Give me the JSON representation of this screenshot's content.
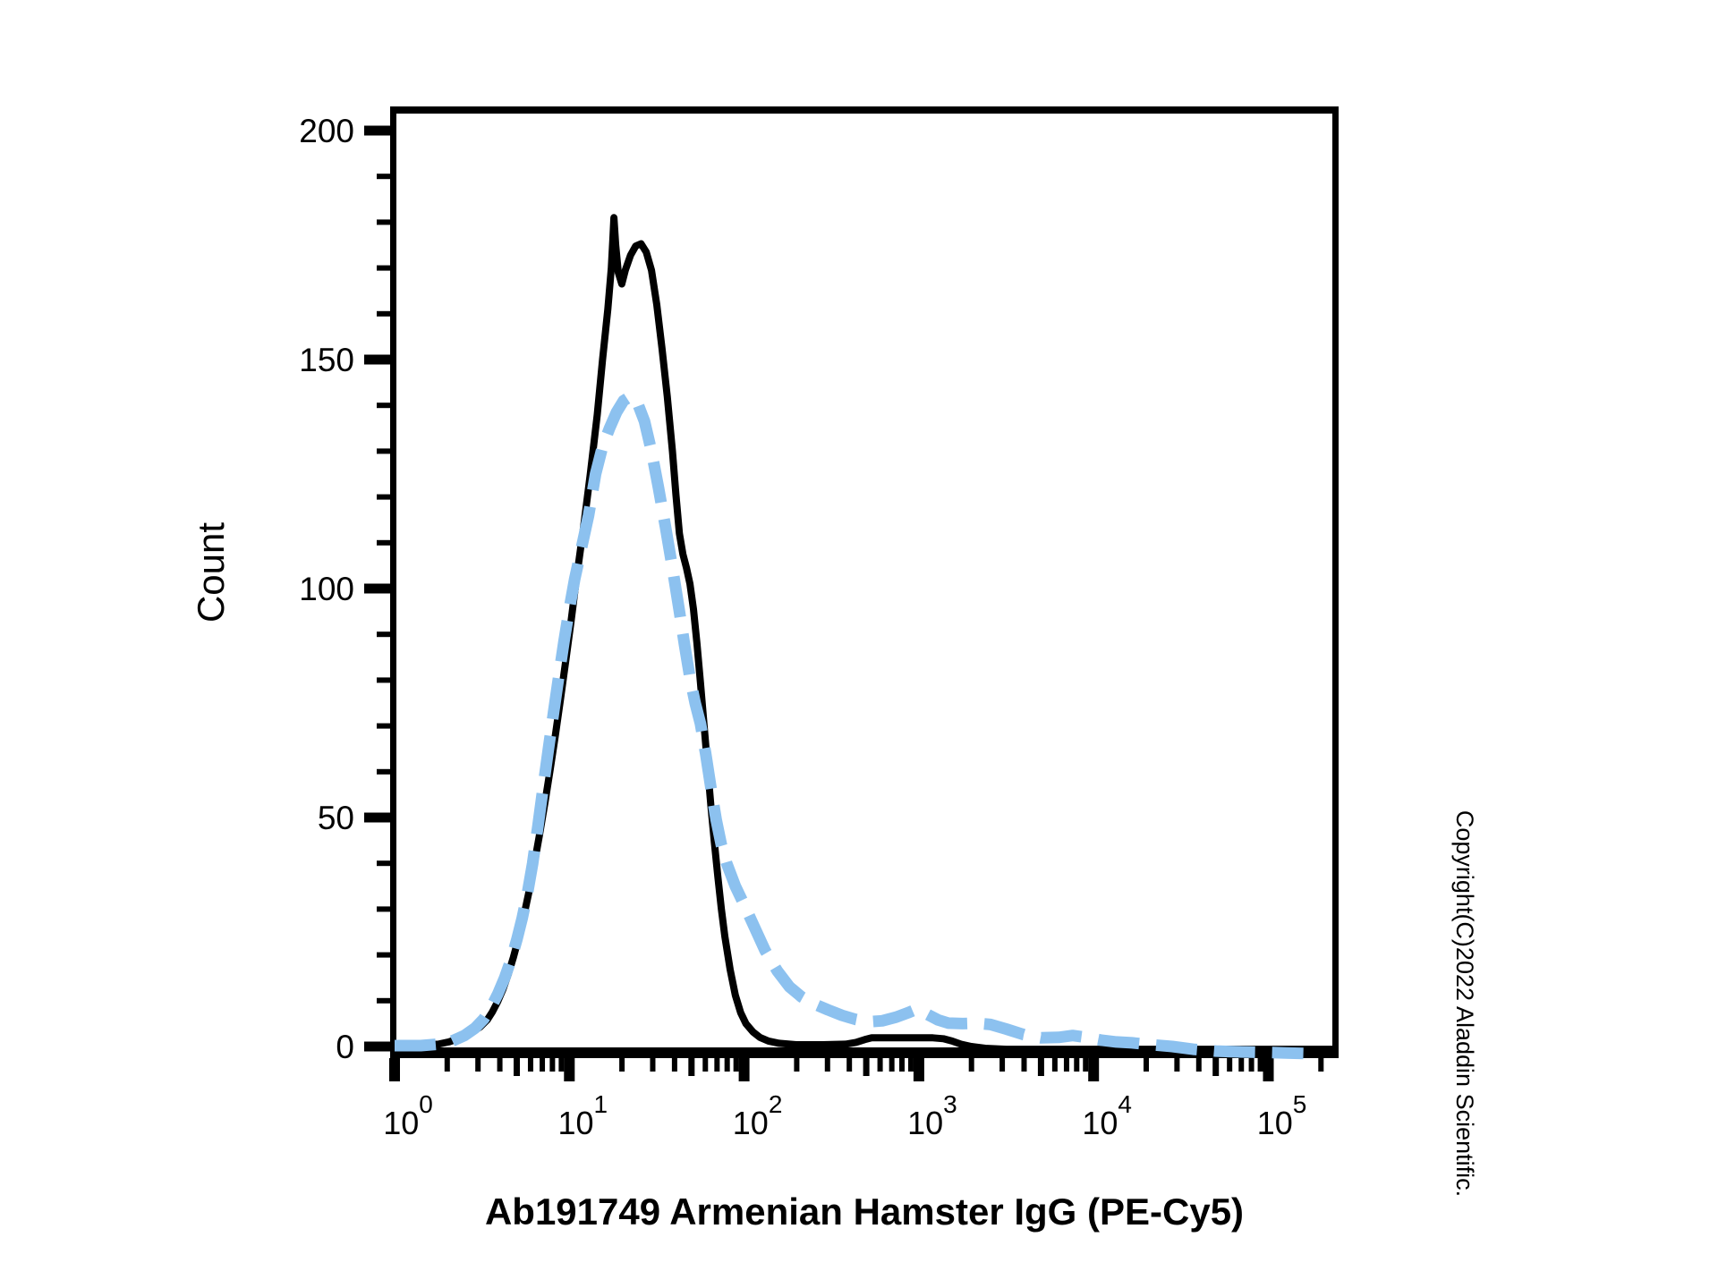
{
  "figure": {
    "copyright": "Copyright(C)2022 Aladdin Scientific."
  },
  "chart_data": {
    "type": "line",
    "subtype": "flow-cytometry-histogram-overlay",
    "title": "Ab191749 Armenian Hamster IgG (PE-Cy5)",
    "xlabel": "Ab191749 Armenian Hamster IgG (PE-Cy5)",
    "ylabel": "Count",
    "x_scale": "log10",
    "x_range_log": [
      0,
      5.39
    ],
    "ylim": [
      0,
      200
    ],
    "grid": false,
    "legend": "none",
    "y_ticks": [
      0,
      50,
      100,
      150,
      200
    ],
    "y_minor_step": 10,
    "x_major_decades": [
      0,
      1,
      2,
      3,
      4,
      5
    ],
    "x_minor_mantissas": [
      2,
      3,
      4,
      5,
      6,
      7,
      8,
      9
    ],
    "x_tick_labels": [
      {
        "base": "10",
        "exp": "0"
      },
      {
        "base": "10",
        "exp": "1"
      },
      {
        "base": "10",
        "exp": "2"
      },
      {
        "base": "10",
        "exp": "3"
      },
      {
        "base": "10",
        "exp": "4"
      },
      {
        "base": "10",
        "exp": "5"
      }
    ],
    "series": [
      {
        "name": "solid-black-curve",
        "color": "#000000",
        "line_style": "solid",
        "line_width": 8,
        "points_log_x_count": [
          [
            0.0,
            0.3
          ],
          [
            0.15,
            0.3
          ],
          [
            0.25,
            0.5
          ],
          [
            0.31,
            1.0
          ],
          [
            0.38,
            1.9
          ],
          [
            0.44,
            3.0
          ],
          [
            0.49,
            4.3
          ],
          [
            0.53,
            5.8
          ],
          [
            0.56,
            7.6
          ],
          [
            0.59,
            9.8
          ],
          [
            0.62,
            12.5
          ],
          [
            0.65,
            15.7
          ],
          [
            0.68,
            19.5
          ],
          [
            0.71,
            23.8
          ],
          [
            0.74,
            28.6
          ],
          [
            0.77,
            34.0
          ],
          [
            0.8,
            40.0
          ],
          [
            0.83,
            46.4
          ],
          [
            0.86,
            53.2
          ],
          [
            0.89,
            60.4
          ],
          [
            0.92,
            68.0
          ],
          [
            0.95,
            76.0
          ],
          [
            0.98,
            84.4
          ],
          [
            1.01,
            93.0
          ],
          [
            1.04,
            102.0
          ],
          [
            1.08,
            113.0
          ],
          [
            1.12,
            125.0
          ],
          [
            1.16,
            138.0
          ],
          [
            1.19,
            150.0
          ],
          [
            1.22,
            161.0
          ],
          [
            1.24,
            170.0
          ],
          [
            1.25,
            177.0
          ],
          [
            1.255,
            181.0
          ],
          [
            1.265,
            175.0
          ],
          [
            1.28,
            169.0
          ],
          [
            1.3,
            166.5
          ],
          [
            1.32,
            169.5
          ],
          [
            1.35,
            172.8
          ],
          [
            1.38,
            174.8
          ],
          [
            1.41,
            175.3
          ],
          [
            1.44,
            173.5
          ],
          [
            1.47,
            169.5
          ],
          [
            1.5,
            162.0
          ],
          [
            1.53,
            152.5
          ],
          [
            1.56,
            142.0
          ],
          [
            1.59,
            130.0
          ],
          [
            1.61,
            120.5
          ],
          [
            1.63,
            112.0
          ],
          [
            1.65,
            107.5
          ],
          [
            1.67,
            104.5
          ],
          [
            1.69,
            101.0
          ],
          [
            1.71,
            95.5
          ],
          [
            1.73,
            88.0
          ],
          [
            1.75,
            79.5
          ],
          [
            1.77,
            70.5
          ],
          [
            1.79,
            61.5
          ],
          [
            1.81,
            52.5
          ],
          [
            1.83,
            44.5
          ],
          [
            1.85,
            37.0
          ],
          [
            1.87,
            30.0
          ],
          [
            1.89,
            24.0
          ],
          [
            1.92,
            16.8
          ],
          [
            1.95,
            11.2
          ],
          [
            1.98,
            7.4
          ],
          [
            2.01,
            5.0
          ],
          [
            2.05,
            3.2
          ],
          [
            2.09,
            2.0
          ],
          [
            2.14,
            1.2
          ],
          [
            2.2,
            0.7
          ],
          [
            2.3,
            0.4
          ],
          [
            2.45,
            0.4
          ],
          [
            2.58,
            0.5
          ],
          [
            2.64,
            0.9
          ],
          [
            2.69,
            1.5
          ],
          [
            2.73,
            1.9
          ],
          [
            2.8,
            1.9
          ],
          [
            2.9,
            1.9
          ],
          [
            3.0,
            1.9
          ],
          [
            3.08,
            1.9
          ],
          [
            3.14,
            1.7
          ],
          [
            3.19,
            1.2
          ],
          [
            3.24,
            0.5
          ],
          [
            3.3,
            0.0
          ],
          [
            3.38,
            -0.4
          ],
          [
            3.5,
            -0.6
          ],
          [
            3.7,
            -0.6
          ],
          [
            4.0,
            -0.6
          ],
          [
            4.4,
            -0.6
          ],
          [
            4.8,
            -0.6
          ],
          [
            5.1,
            -0.6
          ],
          [
            5.38,
            -0.6
          ]
        ]
      },
      {
        "name": "dashed-blue-curve",
        "color": "#8CC1EF",
        "line_style": "dashed",
        "line_width": 13,
        "dash_array": [
          46,
          19
        ],
        "points_log_x_count": [
          [
            0.0,
            0.2
          ],
          [
            0.15,
            0.2
          ],
          [
            0.25,
            0.5
          ],
          [
            0.33,
            1.2
          ],
          [
            0.4,
            2.4
          ],
          [
            0.46,
            4.0
          ],
          [
            0.51,
            6.0
          ],
          [
            0.55,
            8.4
          ],
          [
            0.59,
            11.4
          ],
          [
            0.63,
            15.0
          ],
          [
            0.67,
            19.4
          ],
          [
            0.7,
            23.4
          ],
          [
            0.73,
            28.0
          ],
          [
            0.76,
            33.4
          ],
          [
            0.79,
            40.0
          ],
          [
            0.82,
            48.0
          ],
          [
            0.85,
            56.6
          ],
          [
            0.88,
            65.0
          ],
          [
            0.91,
            73.0
          ],
          [
            0.94,
            81.0
          ],
          [
            0.97,
            88.6
          ],
          [
            1.0,
            95.6
          ],
          [
            1.03,
            102.0
          ],
          [
            1.07,
            109.0
          ],
          [
            1.11,
            116.0
          ],
          [
            1.15,
            125.0
          ],
          [
            1.19,
            131.0
          ],
          [
            1.23,
            135.0
          ],
          [
            1.27,
            138.5
          ],
          [
            1.31,
            141.0
          ],
          [
            1.35,
            142.0
          ],
          [
            1.39,
            140.5
          ],
          [
            1.43,
            136.5
          ],
          [
            1.47,
            130.0
          ],
          [
            1.51,
            122.0
          ],
          [
            1.55,
            113.5
          ],
          [
            1.59,
            104.5
          ],
          [
            1.63,
            95.0
          ],
          [
            1.66,
            87.5
          ],
          [
            1.69,
            80.5
          ],
          [
            1.72,
            75.0
          ],
          [
            1.75,
            70.5
          ],
          [
            1.78,
            64.0
          ],
          [
            1.81,
            56.5
          ],
          [
            1.84,
            49.5
          ],
          [
            1.87,
            44.0
          ],
          [
            1.9,
            40.0
          ],
          [
            1.95,
            35.0
          ],
          [
            2.0,
            31.0
          ],
          [
            2.06,
            26.0
          ],
          [
            2.12,
            21.0
          ],
          [
            2.19,
            16.5
          ],
          [
            2.26,
            13.0
          ],
          [
            2.33,
            10.8
          ],
          [
            2.4,
            9.3
          ],
          [
            2.48,
            8.0
          ],
          [
            2.56,
            6.8
          ],
          [
            2.64,
            5.9
          ],
          [
            2.71,
            5.4
          ],
          [
            2.79,
            5.6
          ],
          [
            2.87,
            6.4
          ],
          [
            2.94,
            7.4
          ],
          [
            2.99,
            8.2
          ],
          [
            3.05,
            7.0
          ],
          [
            3.11,
            5.8
          ],
          [
            3.17,
            5.1
          ],
          [
            3.25,
            5.0
          ],
          [
            3.33,
            5.1
          ],
          [
            3.41,
            4.8
          ],
          [
            3.5,
            3.8
          ],
          [
            3.6,
            2.6
          ],
          [
            3.7,
            1.9
          ],
          [
            3.8,
            2.0
          ],
          [
            3.88,
            2.4
          ],
          [
            3.96,
            2.0
          ],
          [
            4.04,
            1.4
          ],
          [
            4.13,
            1.0
          ],
          [
            4.22,
            0.8
          ],
          [
            4.33,
            0.4
          ],
          [
            4.45,
            0.0
          ],
          [
            4.57,
            -0.6
          ],
          [
            4.7,
            -1.0
          ],
          [
            4.85,
            -1.2
          ],
          [
            5.0,
            -1.3
          ],
          [
            5.1,
            -1.4
          ],
          [
            5.2,
            -1.5
          ]
        ]
      }
    ]
  }
}
